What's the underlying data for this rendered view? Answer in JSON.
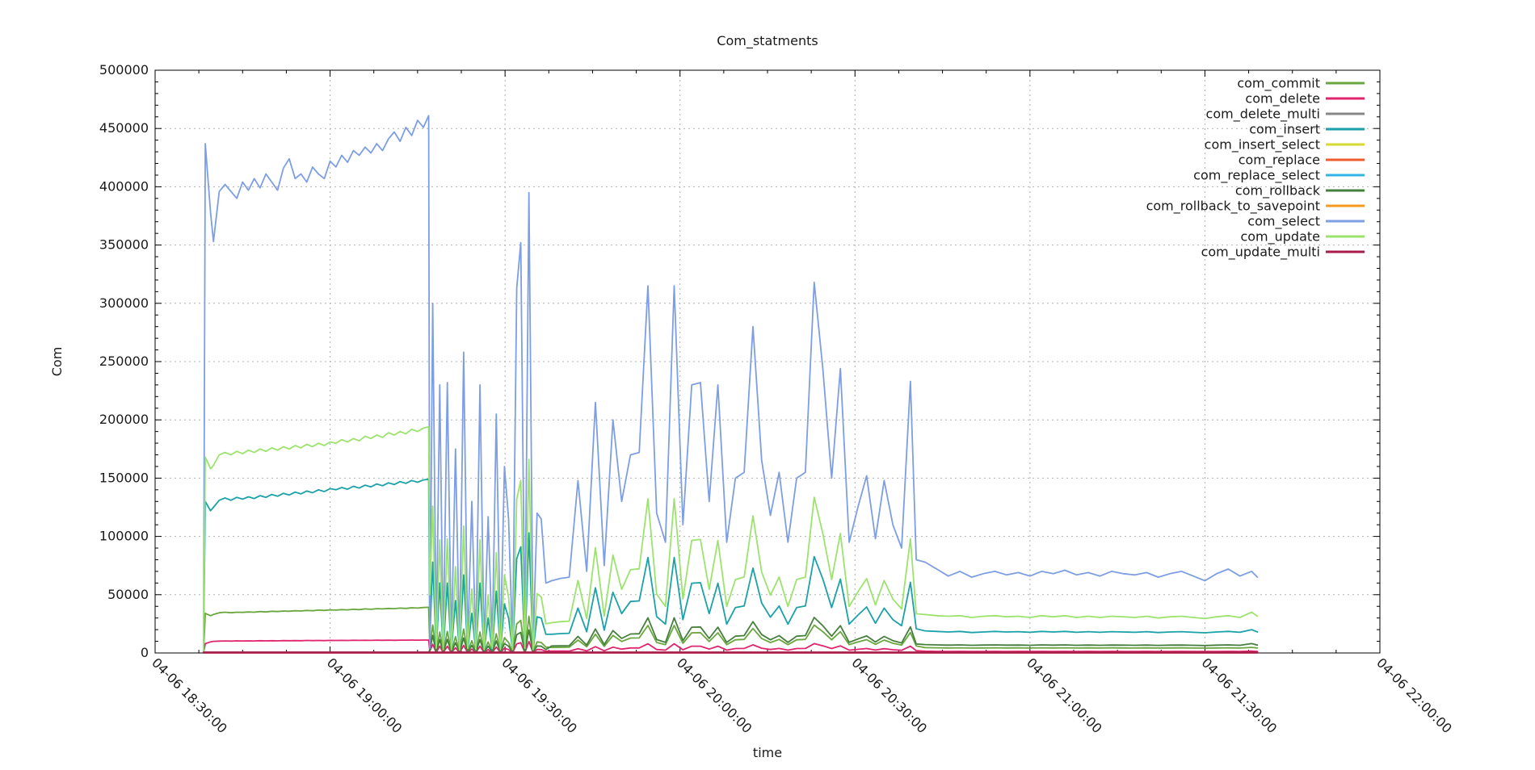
{
  "page": {
    "background": "#ffffff"
  },
  "chart_data": {
    "type": "line",
    "title": "Com_statments",
    "xlabel": "time",
    "ylabel": "Com",
    "x_unit": "minutes after 04-06 18:30:00",
    "xlim": [
      0,
      210
    ],
    "ylim": [
      0,
      500000
    ],
    "grid": "dotted",
    "legend_position": "top-right-inside",
    "x_minor_step": 7.5,
    "y_minor_step": 10000,
    "x_ticks": [
      {
        "minute": 0,
        "label": "04-06 18:30:00"
      },
      {
        "minute": 30,
        "label": "04-06 19:00:00"
      },
      {
        "minute": 60,
        "label": "04-06 19:30:00"
      },
      {
        "minute": 90,
        "label": "04-06 20:00:00"
      },
      {
        "minute": 120,
        "label": "04-06 20:30:00"
      },
      {
        "minute": 150,
        "label": "04-06 21:00:00"
      },
      {
        "minute": 180,
        "label": "04-06 21:30:00"
      },
      {
        "minute": 210,
        "label": "04-06 22:00:00"
      }
    ],
    "y_ticks": [
      {
        "value": 0,
        "label": "0"
      },
      {
        "value": 50000,
        "label": "50000"
      },
      {
        "value": 100000,
        "label": "100000"
      },
      {
        "value": 150000,
        "label": "150000"
      },
      {
        "value": 200000,
        "label": "200000"
      },
      {
        "value": 250000,
        "label": "250000"
      },
      {
        "value": 300000,
        "label": "300000"
      },
      {
        "value": 350000,
        "label": "350000"
      },
      {
        "value": 400000,
        "label": "400000"
      },
      {
        "value": 450000,
        "label": "450000"
      },
      {
        "value": 500000,
        "label": "500000"
      }
    ],
    "x_main": [
      8.3,
      8.6,
      9.5,
      10,
      11,
      12,
      13,
      14,
      15,
      16,
      17,
      18,
      19,
      20,
      21,
      22,
      23,
      24,
      25,
      26,
      27,
      28,
      29,
      30,
      31,
      32,
      33,
      34,
      35,
      36,
      37,
      38,
      39,
      40,
      41,
      42,
      43,
      44,
      45,
      46,
      46.9,
      47.1,
      47.6,
      48.2,
      48.8,
      49.4,
      50.1,
      50.8,
      51.5,
      52.2,
      52.9,
      53.6,
      54.3,
      55,
      55.7,
      56.4,
      57.1,
      57.8,
      58.5,
      59.2,
      59.9,
      60.6,
      61.3,
      62,
      62.7,
      63.4,
      64.1,
      64.8,
      65.5,
      66.2,
      67,
      68,
      69.5,
      71,
      72.5,
      74,
      75.5,
      77,
      78.5,
      80,
      81.5,
      83,
      84.5,
      86,
      87.5,
      89,
      90.5,
      92,
      93.5,
      95,
      96.5,
      98,
      99.5,
      101,
      102.5,
      104,
      105.5,
      107,
      108.5,
      110,
      111.5,
      113,
      114.5,
      116,
      117.5,
      119,
      120.5,
      122,
      123.5,
      125,
      126.5,
      128,
      129.5,
      130.5,
      132,
      134,
      136,
      138,
      140,
      142,
      144,
      146,
      148,
      150,
      152,
      154,
      156,
      158,
      160,
      162,
      164,
      166,
      168,
      170,
      172,
      174,
      176,
      178,
      180,
      182,
      184,
      186,
      188,
      189
    ],
    "series": [
      {
        "name": "com_commit",
        "color": "#6aa63e",
        "x": "main",
        "values": [
          200,
          34000,
          32000,
          33000,
          34500,
          35000,
          34500,
          35000,
          34800,
          35200,
          35000,
          35500,
          35200,
          35800,
          35500,
          36000,
          35800,
          36200,
          36000,
          36500,
          36200,
          36800,
          36500,
          37000,
          36800,
          37200,
          37000,
          37500,
          37200,
          37800,
          37500,
          38000,
          37800,
          38200,
          38000,
          38500,
          38200,
          38800,
          38500,
          39000,
          39200,
          4000,
          24000,
          1000,
          18000,
          800,
          18500,
          900,
          14000,
          700,
          20500,
          1000,
          10500,
          800,
          18000,
          900,
          9500,
          1000,
          16500,
          800,
          13000,
          9000,
          800,
          25000,
          28000,
          1000,
          31500,
          900,
          9500,
          9000,
          5000,
          4700,
          4800,
          4900,
          11100,
          5300,
          16100,
          5600,
          15000,
          9800,
          12800,
          12900,
          23600,
          9000,
          7100,
          23600,
          8300,
          17300,
          17400,
          9800,
          17300,
          7100,
          11300,
          11600,
          21000,
          12400,
          8900,
          11600,
          7100,
          11300,
          11600,
          23900,
          18200,
          11300,
          18300,
          7100,
          9400,
          11400,
          7400,
          11100,
          8300,
          6800,
          17500,
          6000,
          4600,
          4400,
          4300,
          4400,
          4200,
          4300,
          4400,
          4300,
          4350,
          4250,
          4400,
          4300,
          4400,
          4250,
          4350,
          4250,
          4350,
          4300,
          4250,
          4350,
          4200,
          4300,
          4350,
          4250,
          4150,
          4300,
          4400,
          4250,
          4800,
          4300
        ]
      },
      {
        "name": "com_delete",
        "color": "#e0246e",
        "x": "main",
        "values": [
          300,
          8000,
          9500,
          10000,
          10200,
          10300,
          10200,
          10400,
          10300,
          10400,
          10300,
          10500,
          10400,
          10500,
          10400,
          10600,
          10500,
          10600,
          10500,
          10700,
          10600,
          10700,
          10600,
          10800,
          10700,
          10800,
          10700,
          10900,
          10800,
          10900,
          10800,
          11000,
          10900,
          11000,
          10900,
          11000,
          11000,
          11100,
          11000,
          11100,
          11100,
          1500,
          7500,
          300,
          5800,
          250,
          5800,
          300,
          4400,
          200,
          6500,
          300,
          3300,
          250,
          5800,
          300,
          2900,
          300,
          5100,
          250,
          4000,
          2900,
          250,
          7800,
          8800,
          300,
          9900,
          300,
          3000,
          2900,
          1500,
          1600,
          1600,
          1600,
          3700,
          1800,
          5400,
          1900,
          5000,
          3300,
          4300,
          4300,
          7900,
          3000,
          2400,
          7900,
          2800,
          5800,
          5800,
          3300,
          5800,
          2400,
          3800,
          3900,
          7000,
          4100,
          3000,
          3900,
          2400,
          3800,
          3900,
          8000,
          6100,
          3800,
          6100,
          2400,
          3100,
          3800,
          2500,
          3700,
          2800,
          2300,
          5800,
          2000,
          1500,
          1400,
          1350,
          1400,
          1300,
          1350,
          1400,
          1350,
          1380,
          1320,
          1400,
          1350,
          1400,
          1320,
          1380,
          1320,
          1380,
          1350,
          1320,
          1380,
          1300,
          1350,
          1380,
          1320,
          1280,
          1350,
          1400,
          1320,
          1600,
          1350
        ]
      },
      {
        "name": "com_delete_multi",
        "color": "#878787",
        "x": [
          8.3,
          189
        ],
        "values": [
          150,
          150
        ]
      },
      {
        "name": "com_insert",
        "color": "#1ba1a8",
        "x": "main",
        "values": [
          500,
          130000,
          122000,
          125000,
          131000,
          133000,
          131000,
          133500,
          132000,
          134000,
          132500,
          135000,
          133500,
          136000,
          134500,
          137000,
          135500,
          138000,
          136500,
          139000,
          137500,
          140000,
          138500,
          141000,
          140000,
          142000,
          140500,
          143000,
          141500,
          144000,
          142500,
          145000,
          143500,
          146000,
          144500,
          147000,
          145500,
          148000,
          146500,
          148500,
          149000,
          13000,
          78000,
          2000,
          60000,
          1500,
          60000,
          2000,
          45000,
          1500,
          67000,
          2000,
          34000,
          1500,
          60000,
          2000,
          30000,
          2000,
          53000,
          1500,
          42000,
          30000,
          2000,
          81000,
          91000,
          2000,
          103000,
          2000,
          31000,
          30000,
          16000,
          16100,
          16600,
          16900,
          38500,
          18200,
          55900,
          19500,
          52000,
          33800,
          44200,
          44700,
          81900,
          31200,
          24700,
          81900,
          28600,
          59800,
          60300,
          33800,
          59800,
          24700,
          39000,
          40300,
          72800,
          42900,
          30700,
          40300,
          24700,
          39000,
          40300,
          82700,
          63200,
          39000,
          63400,
          24700,
          32500,
          39500,
          25500,
          38500,
          28600,
          23400,
          60600,
          20800,
          19000,
          18500,
          18000,
          18500,
          17500,
          18000,
          18500,
          18000,
          18300,
          17700,
          18500,
          18000,
          18500,
          17700,
          18300,
          17700,
          18300,
          18000,
          17700,
          18300,
          17500,
          18000,
          18300,
          17700,
          17300,
          18000,
          18500,
          17700,
          20000,
          18000
        ]
      },
      {
        "name": "com_insert_select",
        "color": "#d5d930",
        "x": [
          8.3,
          189
        ],
        "values": [
          500,
          500
        ]
      },
      {
        "name": "com_replace",
        "color": "#f05b2e",
        "x": [
          8.3,
          189
        ],
        "values": [
          100,
          100
        ]
      },
      {
        "name": "com_replace_select",
        "color": "#34b4e4",
        "x": [
          8.3,
          189
        ],
        "values": [
          250,
          250
        ]
      },
      {
        "name": "com_rollback",
        "color": "#457f3c",
        "x": "main",
        "values": [
          100,
          600,
          550,
          580,
          600,
          600,
          600,
          600,
          600,
          600,
          600,
          600,
          600,
          600,
          600,
          600,
          600,
          600,
          600,
          600,
          600,
          600,
          600,
          600,
          600,
          600,
          600,
          600,
          600,
          600,
          600,
          600,
          600,
          600,
          600,
          600,
          600,
          600,
          600,
          600,
          600,
          2500,
          15000,
          500,
          11500,
          400,
          11600,
          500,
          8800,
          400,
          12900,
          500,
          6500,
          400,
          11500,
          500,
          5900,
          500,
          10300,
          400,
          8000,
          5800,
          400,
          15700,
          17600,
          500,
          19800,
          500,
          6000,
          5800,
          3000,
          6000,
          6100,
          6200,
          14200,
          6700,
          20600,
          7200,
          19200,
          12500,
          16300,
          16500,
          30200,
          11500,
          9100,
          30200,
          10600,
          22100,
          22300,
          12500,
          22100,
          9100,
          14400,
          14900,
          26900,
          15800,
          11300,
          14900,
          9100,
          14400,
          14900,
          30500,
          23300,
          14400,
          23400,
          9100,
          12000,
          14600,
          9400,
          14200,
          10600,
          8600,
          22400,
          7700,
          7200,
          6900,
          6700,
          6900,
          6600,
          6800,
          6900,
          6700,
          6800,
          6600,
          6900,
          6700,
          6900,
          6600,
          6800,
          6600,
          6800,
          6700,
          6600,
          6800,
          6500,
          6700,
          6800,
          6600,
          6400,
          6700,
          6900,
          6600,
          8000,
          6700
        ]
      },
      {
        "name": "com_rollback_to_savepoint",
        "color": "#f6991f",
        "x": [
          8.3,
          189
        ],
        "values": [
          300,
          300
        ]
      },
      {
        "name": "com_select",
        "color": "#7d9ee3",
        "x": "main",
        "values": [
          2000,
          437000,
          378000,
          353000,
          396000,
          402000,
          396000,
          390000,
          404000,
          397000,
          407000,
          399000,
          411000,
          404000,
          397000,
          416000,
          424000,
          407000,
          411000,
          404000,
          417000,
          411000,
          407000,
          422000,
          417000,
          427000,
          421000,
          431000,
          427000,
          434000,
          429000,
          437000,
          431000,
          441000,
          447000,
          439000,
          451000,
          444000,
          457000,
          451000,
          461000,
          4000,
          300000,
          8000,
          230000,
          5000,
          232000,
          6000,
          175000,
          4000,
          258000,
          7000,
          130000,
          5000,
          230000,
          6000,
          117000,
          8000,
          205000,
          5000,
          160000,
          115000,
          6000,
          313000,
          352000,
          8000,
          395000,
          7000,
          120000,
          115000,
          60000,
          62000,
          64000,
          65000,
          148000,
          70000,
          215000,
          75000,
          200000,
          130000,
          170000,
          172000,
          315000,
          120000,
          95000,
          315000,
          110000,
          230000,
          232000,
          130000,
          230000,
          95000,
          150000,
          155000,
          280000,
          165000,
          118000,
          155000,
          95000,
          150000,
          155000,
          318000,
          243000,
          150000,
          244000,
          95000,
          125000,
          152000,
          98000,
          148000,
          110000,
          90000,
          233000,
          80000,
          78000,
          72000,
          66000,
          70000,
          65000,
          68000,
          70000,
          67000,
          69000,
          66000,
          70000,
          68000,
          71000,
          67000,
          69000,
          66000,
          70000,
          68000,
          67000,
          69000,
          65000,
          68000,
          70000,
          66000,
          62000,
          68000,
          72000,
          66000,
          70000,
          65000
        ]
      },
      {
        "name": "com_update",
        "color": "#9ce36e",
        "x": "main",
        "values": [
          1000,
          168000,
          158000,
          161000,
          170000,
          172000,
          170000,
          173000,
          171000,
          174000,
          172000,
          175000,
          173000,
          176000,
          174000,
          177000,
          175000,
          178000,
          176000,
          179000,
          177000,
          180000,
          178000,
          181000,
          180000,
          183000,
          181000,
          184000,
          182000,
          186000,
          184000,
          187000,
          185000,
          189000,
          187000,
          190000,
          188000,
          192000,
          190000,
          193000,
          194000,
          50000,
          126000,
          4000,
          97000,
          3000,
          98000,
          3000,
          74000,
          2500,
          109000,
          4000,
          55000,
          3000,
          97000,
          3000,
          50000,
          4000,
          86000,
          3000,
          67000,
          48000,
          3000,
          132000,
          148000,
          4000,
          166000,
          3000,
          51000,
          48000,
          25000,
          26000,
          26900,
          27300,
          62200,
          29400,
          90300,
          31500,
          84000,
          54600,
          71400,
          72200,
          132300,
          50400,
          39900,
          132300,
          46200,
          96600,
          97400,
          54600,
          96600,
          39900,
          63000,
          65100,
          117600,
          69300,
          49600,
          65100,
          39900,
          63000,
          65100,
          133600,
          102100,
          63000,
          102500,
          39900,
          52500,
          63800,
          41200,
          62200,
          46200,
          37800,
          97900,
          33600,
          33000,
          32000,
          31500,
          32000,
          30500,
          31500,
          32000,
          31000,
          31500,
          30500,
          32000,
          31000,
          32000,
          30500,
          31500,
          30500,
          31500,
          31000,
          30500,
          31500,
          30000,
          31000,
          31500,
          30500,
          29500,
          31000,
          32000,
          30500,
          35000,
          31500
        ]
      },
      {
        "name": "com_update_multi",
        "color": "#a91a4d",
        "x": [
          8.3,
          189
        ],
        "values": [
          400,
          400
        ]
      }
    ]
  }
}
